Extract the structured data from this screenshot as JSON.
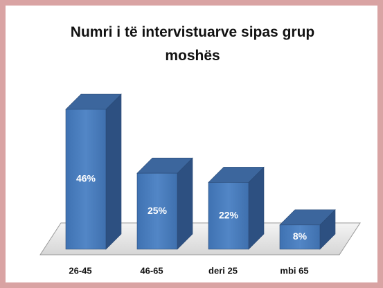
{
  "chart_data": {
    "type": "bar3d",
    "title": "Numri i të intervistuarve sipas grup moshës",
    "categories": [
      "26-45",
      "46-65",
      "deri 25",
      "mbi 65"
    ],
    "values": [
      46,
      25,
      22,
      8
    ],
    "value_labels": [
      "46%",
      "25%",
      "22%",
      "8%"
    ],
    "color": "#4a7ebb"
  }
}
